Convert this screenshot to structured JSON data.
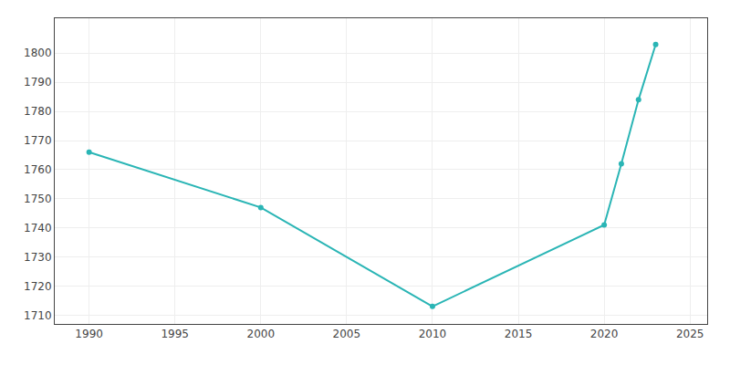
{
  "chart_data": {
    "type": "line",
    "x": [
      1990,
      2000,
      2010,
      2020,
      2021,
      2022,
      2023
    ],
    "values": [
      1766,
      1747,
      1713,
      1741,
      1762,
      1784,
      1803
    ],
    "color": "#2ab5b5",
    "marker": "circle",
    "xlim": [
      1988,
      2026
    ],
    "ylim": [
      1707,
      1812
    ],
    "xticks": [
      1990,
      1995,
      2000,
      2005,
      2010,
      2015,
      2020,
      2025
    ],
    "yticks": [
      1710,
      1720,
      1730,
      1740,
      1750,
      1760,
      1770,
      1780,
      1790,
      1800
    ],
    "grid": true
  }
}
